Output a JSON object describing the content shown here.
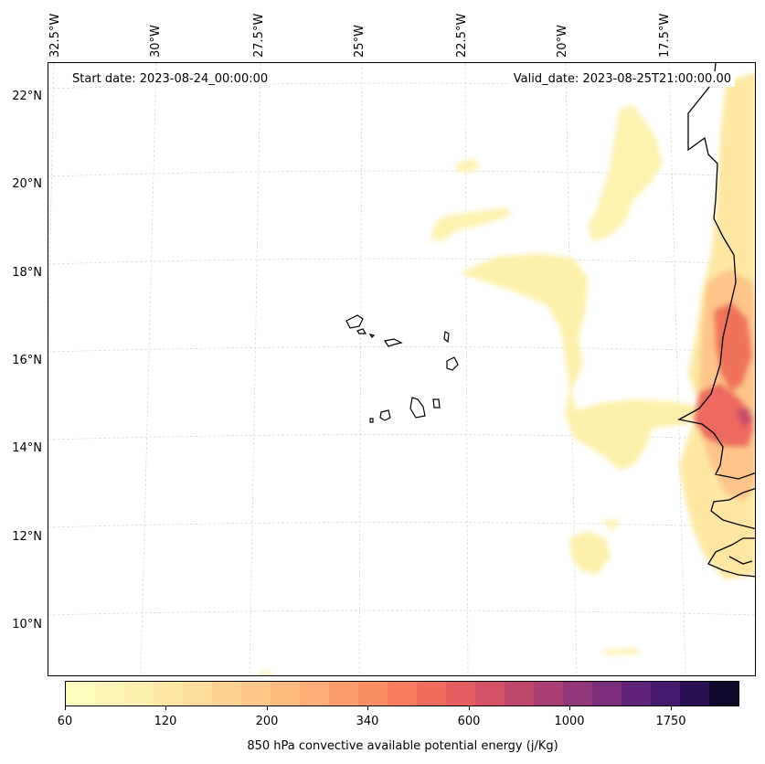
{
  "map": {
    "start_date_label": "Start date: 2023-08-24_00:00:00",
    "valid_date_label": "Valid_date: 2023-08-25T21:00:00.00",
    "longitude_labels": [
      "32.5°W",
      "30°W",
      "27.5°W",
      "25°W",
      "22.5°W",
      "20°W",
      "17.5°W"
    ],
    "latitude_labels": [
      "22°N",
      "20°N",
      "18°N",
      "16°N",
      "14°N",
      "12°N",
      "10°N"
    ],
    "coastline_color": "#000000",
    "gridline_color": "#cccccc"
  },
  "colorbar": {
    "tick_labels": [
      "60",
      "120",
      "200",
      "340",
      "600",
      "1000",
      "1750"
    ],
    "label": "850 hPa convective available potential energy (j/Kg)",
    "colors": [
      "#fcfdbf",
      "#fdf5b6",
      "#fdeeae",
      "#fde5a4",
      "#fedd9b",
      "#fed391",
      "#fec787",
      "#febb7e",
      "#fdad75",
      "#fc9e6c",
      "#fb8d63",
      "#f77c5d",
      "#f06c5c",
      "#e45f5f",
      "#d35265",
      "#be486c",
      "#a93f74",
      "#923779",
      "#7a2e7c",
      "#60237a",
      "#451a6f",
      "#2a1052",
      "#0f0a2c"
    ]
  }
}
